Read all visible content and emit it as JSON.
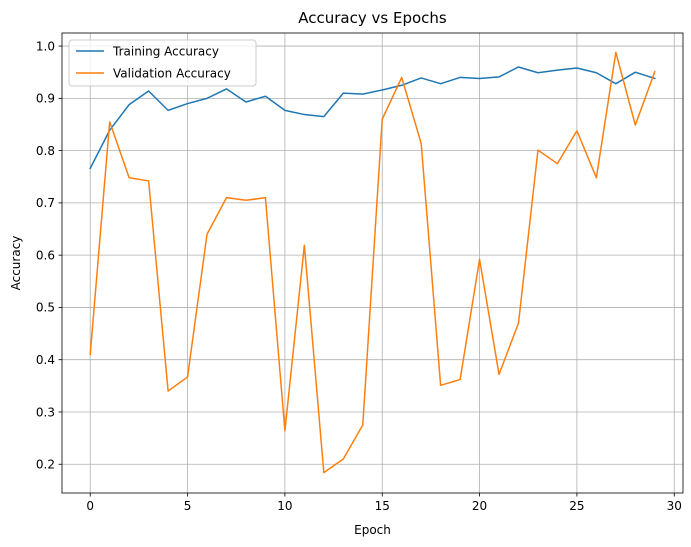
{
  "chart_data": {
    "type": "line",
    "title": "Accuracy vs Epochs",
    "xlabel": "Epoch",
    "ylabel": "Accuracy",
    "xlim": [
      -1.45,
      30.45
    ],
    "ylim": [
      0.145,
      1.025
    ],
    "xticks": [
      0,
      5,
      10,
      15,
      20,
      25,
      30
    ],
    "yticks": [
      0.2,
      0.3,
      0.4,
      0.5,
      0.6,
      0.7,
      0.8,
      0.9,
      1.0
    ],
    "ytick_labels": [
      "0.2",
      "0.3",
      "0.4",
      "0.5",
      "0.6",
      "0.7",
      "0.8",
      "0.9",
      "1.0"
    ],
    "grid": true,
    "legend_position": "top-left",
    "x": [
      0,
      1,
      2,
      3,
      4,
      5,
      6,
      7,
      8,
      9,
      10,
      11,
      12,
      13,
      14,
      15,
      16,
      17,
      18,
      19,
      20,
      21,
      22,
      23,
      24,
      25,
      26,
      27,
      28,
      29
    ],
    "series": [
      {
        "name": "Training Accuracy",
        "color": "#1f77b4",
        "values": [
          0.766,
          0.839,
          0.888,
          0.914,
          0.877,
          0.89,
          0.9,
          0.918,
          0.893,
          0.904,
          0.877,
          0.869,
          0.865,
          0.91,
          0.908,
          0.916,
          0.925,
          0.939,
          0.928,
          0.94,
          0.938,
          0.941,
          0.96,
          0.949,
          0.954,
          0.958,
          0.949,
          0.928,
          0.95,
          0.938
        ]
      },
      {
        "name": "Validation Accuracy",
        "color": "#ff7f0e",
        "values": [
          0.41,
          0.855,
          0.748,
          0.742,
          0.34,
          0.367,
          0.64,
          0.71,
          0.705,
          0.71,
          0.264,
          0.619,
          0.184,
          0.21,
          0.275,
          0.86,
          0.94,
          0.814,
          0.351,
          0.362,
          0.592,
          0.372,
          0.47,
          0.801,
          0.775,
          0.838,
          0.748,
          0.988,
          0.849,
          0.951
        ]
      }
    ]
  }
}
